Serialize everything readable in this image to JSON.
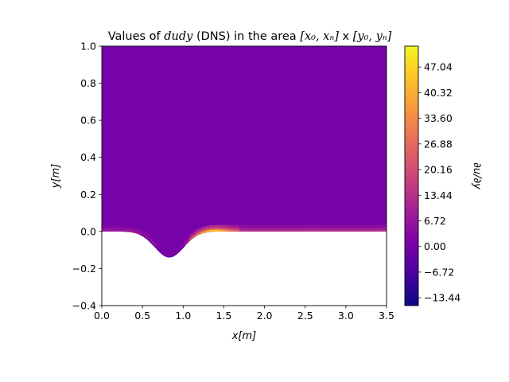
{
  "chart_data": {
    "type": "heatmap",
    "title_plain": "Values of ",
    "title_var": "dudy",
    "title_mid": " (DNS) in the area ",
    "title_math1": "[x₀, xₙ]",
    "title_sep": " x ",
    "title_math2": "[y₀, yₙ]",
    "xlabel": "x[m]",
    "ylabel": "y[m]",
    "colorbar_label": "∂u/∂y",
    "xlim": [
      0.0,
      3.5
    ],
    "ylim": [
      -0.4,
      1.0
    ],
    "xticks": [
      {
        "value": 0.0,
        "label": "0.0"
      },
      {
        "value": 0.5,
        "label": "0.5"
      },
      {
        "value": 1.0,
        "label": "1.0"
      },
      {
        "value": 1.5,
        "label": "1.5"
      },
      {
        "value": 2.0,
        "label": "2.0"
      },
      {
        "value": 2.5,
        "label": "2.5"
      },
      {
        "value": 3.0,
        "label": "3.0"
      },
      {
        "value": 3.5,
        "label": "3.5"
      }
    ],
    "yticks": [
      {
        "value": -0.4,
        "label": "−0.4"
      },
      {
        "value": -0.2,
        "label": "−0.2"
      },
      {
        "value": 0.0,
        "label": "0.0"
      },
      {
        "value": 0.2,
        "label": "0.2"
      },
      {
        "value": 0.4,
        "label": "0.4"
      },
      {
        "value": 0.6,
        "label": "0.6"
      },
      {
        "value": 0.8,
        "label": "0.8"
      },
      {
        "value": 1.0,
        "label": "1.0"
      }
    ],
    "colorbar": {
      "colormap": "plasma",
      "vmin": -15.5,
      "vmax": 52.5,
      "ticks": [
        {
          "value": -13.44,
          "label": "−13.44"
        },
        {
          "value": -6.72,
          "label": "−6.72"
        },
        {
          "value": 0.0,
          "label": "0.00"
        },
        {
          "value": 6.72,
          "label": "6.72"
        },
        {
          "value": 13.44,
          "label": "13.44"
        },
        {
          "value": 20.16,
          "label": "20.16"
        },
        {
          "value": 26.88,
          "label": "26.88"
        },
        {
          "value": 33.6,
          "label": "33.60"
        },
        {
          "value": 40.32,
          "label": "40.32"
        },
        {
          "value": 47.04,
          "label": "47.04"
        }
      ]
    },
    "field": {
      "background_value": 0.0,
      "domain_x": [
        0.0,
        3.5
      ],
      "domain_y_top": 1.0,
      "bottom_wall": "hill",
      "hill_center_x": 0.83,
      "hill_depth": 0.14,
      "hill_halfwidth": 0.46,
      "wall_y_flat": 0.0
    }
  }
}
